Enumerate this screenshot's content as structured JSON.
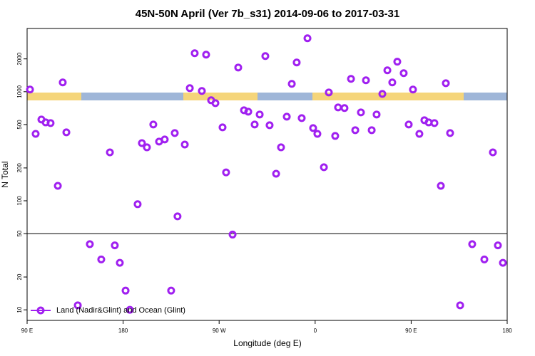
{
  "chart_data": {
    "type": "scatter",
    "title": "45N-50N April (Ver 7b_s31)   2014-09-06 to 2017-03-31",
    "x_label": "Longitude (deg E)",
    "y_label": "N Total",
    "log_y": true,
    "xlim": [
      90,
      540
    ],
    "ylim": [
      8,
      3800
    ],
    "xticks": [
      {
        "value": 90,
        "label": "90 E"
      },
      180,
      {
        "value": 270,
        "label": "90 W"
      },
      {
        "value": 360,
        "label": "0"
      },
      {
        "value": 450,
        "label": "90 E"
      },
      {
        "value": 540,
        "label": "180"
      }
    ],
    "yticks": [
      10,
      20,
      50,
      100,
      200,
      500,
      1000,
      2000
    ],
    "hline": 50,
    "legend": "bottom-left",
    "series": [
      {
        "name": "Land (Nadir&Glint) and Ocean (Glint)",
        "color": "#a020f0",
        "x": [
          92.7,
          98,
          103.4,
          107.4,
          112,
          118.8,
          123.4,
          126.8,
          137.5,
          148.8,
          159.5,
          167.6,
          172.2,
          176.9,
          182.3,
          186.3,
          193.6,
          197.6,
          202.3,
          208.3,
          213.7,
          219,
          225,
          228.4,
          231,
          237.8,
          242.5,
          247.1,
          253.8,
          257.8,
          262.5,
          266.5,
          273.2,
          276.5,
          282.6,
          287.9,
          293.3,
          297.3,
          303.3,
          308,
          313.3,
          317.3,
          323.4,
          328,
          333.4,
          338.1,
          342.7,
          347.4,
          352.8,
          358.1,
          362.1,
          368.2,
          372.8,
          378.8,
          381.5,
          387.5,
          393.6,
          397.6,
          402.9,
          407.6,
          413,
          417.6,
          423,
          427.7,
          432.3,
          437,
          443,
          447.7,
          451.7,
          457.7,
          462.4,
          466.4,
          471.8,
          477.8,
          482.5,
          486.5,
          495.9,
          507.2,
          518.6,
          526.6,
          531.3,
          536
        ],
        "values": [
          1047,
          411,
          556,
          523,
          516,
          137,
          1216,
          424,
          11,
          40,
          29,
          278,
          39,
          27,
          15,
          10,
          93,
          338,
          309,
          500,
          349,
          365,
          15,
          418,
          72,
          328,
          1078,
          2254,
          1016,
          2188,
          835,
          785,
          471,
          182,
          49,
          1667,
          676,
          656,
          500,
          618,
          2123,
          493,
          177,
          309,
          590,
          1180,
          1854,
          573,
          3090,
          464,
          411,
          203,
          985,
          393,
          718,
          708,
          1311,
          444,
          646,
          1273,
          444,
          618,
          955,
          1571,
          1216,
          1884,
          1479,
          500,
          1047,
          411,
          548,
          523,
          516,
          137,
          1197,
          418,
          11,
          40,
          29,
          278,
          39,
          27
        ]
      }
    ]
  }
}
